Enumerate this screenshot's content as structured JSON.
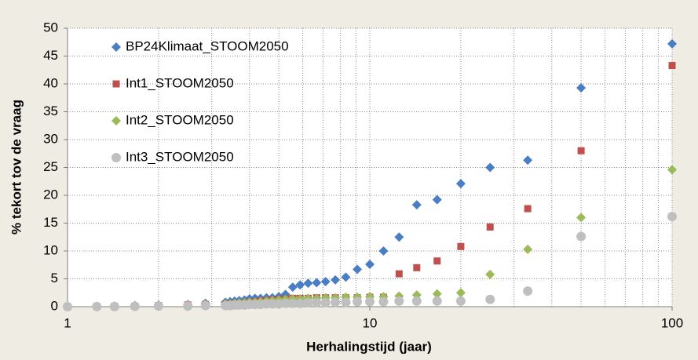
{
  "chart_data": {
    "type": "scatter",
    "x_label": "Herhalingstijd (jaar)",
    "y_label": "% tekort tov de vraag",
    "x_log": true,
    "xlim": [
      1,
      100
    ],
    "xticks": [
      1,
      10,
      100
    ],
    "xminorticks": [
      2,
      3,
      4,
      5,
      6,
      7,
      8,
      9,
      20,
      30,
      40,
      50,
      60,
      70,
      80,
      90
    ],
    "ylim": [
      0,
      50
    ],
    "yticks": [
      0,
      5,
      10,
      15,
      20,
      25,
      30,
      35,
      40,
      45,
      50
    ],
    "grid": true,
    "legend": "upper left",
    "x": [
      100,
      50,
      33.3,
      25,
      20,
      16.7,
      14.3,
      12.5,
      11.1,
      10,
      9.09,
      8.33,
      7.69,
      7.14,
      6.67,
      6.25,
      5.88,
      5.56,
      5.26,
      5,
      4.76,
      4.55,
      4.35,
      4.17,
      4,
      3.85,
      3.7,
      3.57,
      3.45,
      3.33,
      2.86,
      2.5,
      2,
      1.67,
      1.43,
      1.25,
      1
    ],
    "series": [
      {
        "name": "BP24Klimaat_STOOM2050",
        "color": "#4a7ec4",
        "marker": "diamond",
        "values": [
          47.2,
          39.3,
          26.3,
          25.0,
          22.1,
          19.2,
          18.3,
          12.5,
          10.0,
          7.6,
          6.7,
          5.3,
          4.8,
          4.5,
          4.3,
          4.2,
          3.9,
          3.5,
          2.2,
          1.8,
          1.6,
          1.6,
          1.5,
          1.5,
          1.4,
          1.2,
          1.1,
          1.0,
          0.9,
          0.8,
          0.6,
          0.4,
          0.3,
          0.2,
          0.1,
          0.05,
          0
        ]
      },
      {
        "name": "Int1_STOOM2050",
        "color": "#c0504d",
        "marker": "square",
        "values": [
          43.3,
          28.0,
          17.6,
          14.3,
          10.8,
          8.2,
          7.0,
          5.9,
          1.7,
          1.7,
          1.6,
          1.6,
          1.6,
          1.6,
          1.6,
          1.5,
          1.5,
          1.5,
          1.4,
          1.3,
          1.2,
          1.1,
          1.0,
          0.9,
          0.8,
          0.7,
          0.6,
          0.6,
          0.5,
          0.5,
          0.4,
          0.3,
          0.2,
          0.1,
          0.05,
          0.02,
          0
        ]
      },
      {
        "name": "Int2_STOOM2050",
        "color": "#9bbb59",
        "marker": "diamond",
        "values": [
          24.6,
          16.0,
          10.3,
          5.8,
          2.5,
          2.3,
          2.1,
          1.9,
          1.8,
          1.8,
          1.7,
          1.7,
          1.6,
          1.6,
          1.5,
          1.5,
          1.4,
          1.4,
          1.3,
          1.2,
          1.1,
          1.0,
          0.9,
          0.8,
          0.8,
          0.7,
          0.7,
          0.6,
          0.5,
          0.5,
          0.4,
          0.3,
          0.2,
          0.1,
          0.05,
          0.02,
          0
        ]
      },
      {
        "name": "Int3_STOOM2050",
        "color": "#bfbfbf",
        "marker": "circle",
        "values": [
          16.2,
          12.6,
          2.8,
          1.3,
          1.0,
          1.0,
          1.0,
          1.0,
          0.9,
          0.9,
          0.9,
          0.8,
          0.8,
          0.7,
          0.7,
          0.7,
          0.6,
          0.6,
          0.6,
          0.5,
          0.5,
          0.5,
          0.4,
          0.4,
          0.4,
          0.3,
          0.3,
          0.3,
          0.2,
          0.2,
          0.2,
          0.1,
          0.1,
          0.05,
          0.02,
          0.01,
          0
        ]
      }
    ]
  }
}
